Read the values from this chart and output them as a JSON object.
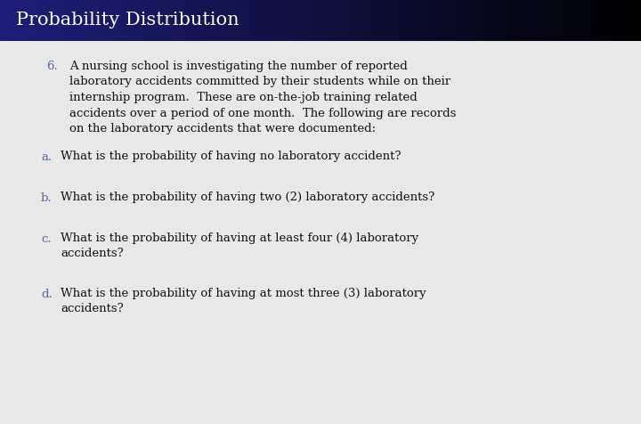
{
  "title": "Probability Distribution",
  "title_color": "#ffffff",
  "header_bg_left": "#1e1e7a",
  "header_bg_right": "#000000",
  "body_bg": "#e8e8e8",
  "number_color": "#5567a0",
  "letter_color": "#5567a0",
  "text_color": "#111111",
  "item_number": "6.",
  "item_text_lines": [
    "A nursing school is investigating the number of reported",
    "laboratory accidents committed by their students while on their",
    "internship program.  These are on-the-job training related",
    "accidents over a period of one month.  The following are records",
    "on the laboratory accidents that were documented:"
  ],
  "sub_items": [
    {
      "letter": "a.",
      "lines": [
        "What is the probability of having no laboratory accident?"
      ]
    },
    {
      "letter": "b.",
      "lines": [
        "What is the probability of having two (2) laboratory accidents?"
      ]
    },
    {
      "letter": "c.",
      "lines": [
        "What is the probability of having at least four (4) laboratory",
        "accidents?"
      ]
    },
    {
      "letter": "d.",
      "lines": [
        "What is the probability of having at most three (3) laboratory",
        "accidents?"
      ]
    }
  ],
  "figwidth": 7.2,
  "figheight": 4.76,
  "dpi": 100
}
